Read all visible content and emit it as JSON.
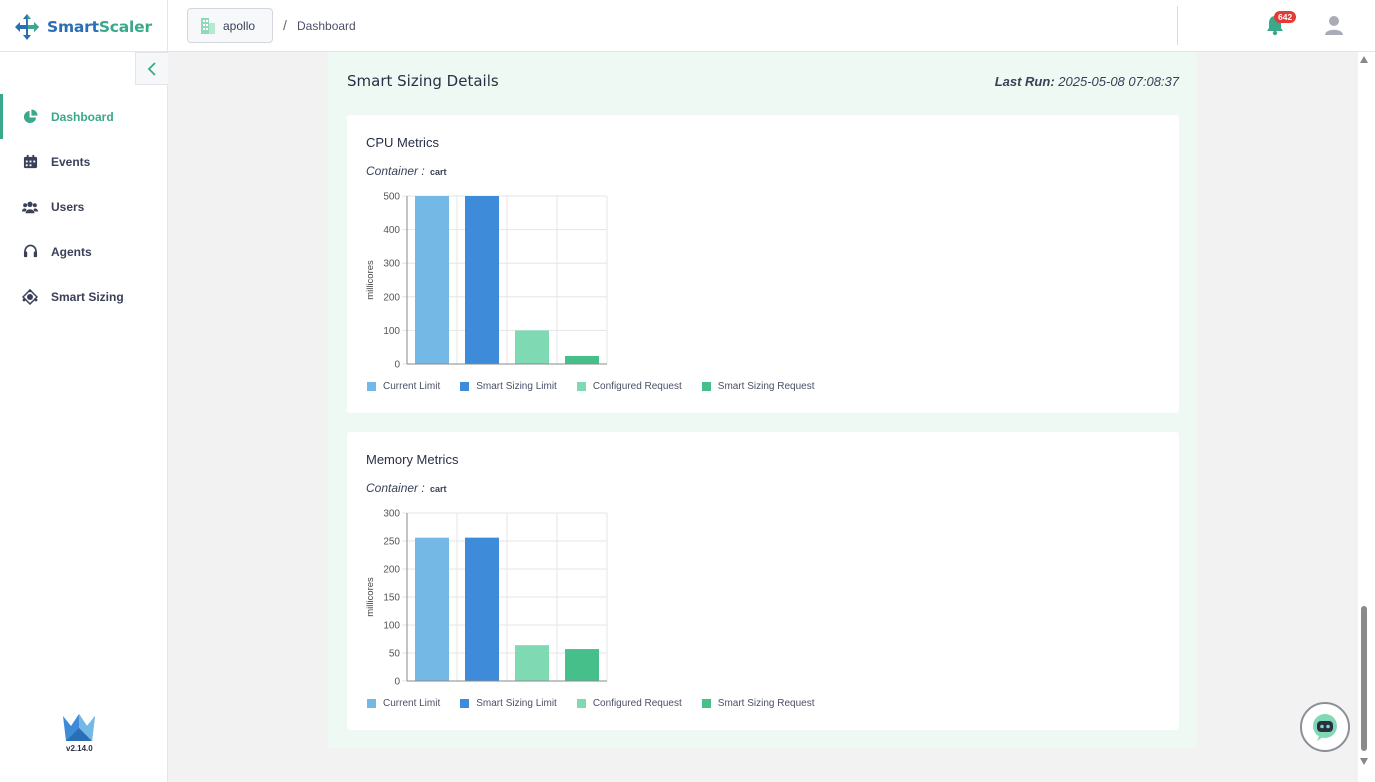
{
  "app": {
    "name_part1": "Smart",
    "name_part2": "Scaler",
    "version": "v2.14.0"
  },
  "header": {
    "workspace": "apollo",
    "separator": "/",
    "page": "Dashboard",
    "notification_count": "642"
  },
  "sidebar": {
    "items": [
      {
        "label": "Dashboard",
        "icon": "pie-chart-icon",
        "active": true
      },
      {
        "label": "Events",
        "icon": "calendar-icon",
        "active": false
      },
      {
        "label": "Users",
        "icon": "users-icon",
        "active": false
      },
      {
        "label": "Agents",
        "icon": "headset-icon",
        "active": false
      },
      {
        "label": "Smart Sizing",
        "icon": "smart-sizing-icon",
        "active": false
      }
    ]
  },
  "main": {
    "title": "Smart Sizing Details",
    "last_run_label": "Last Run:",
    "last_run_value": "2025-05-08 07:08:37"
  },
  "cards": [
    {
      "title": "CPU Metrics",
      "container_label": "Container :",
      "container_value": "cart"
    },
    {
      "title": "Memory Metrics",
      "container_label": "Container :",
      "container_value": "cart"
    }
  ],
  "colors": {
    "accent": "#3aa88a",
    "current_limit": "#74b9e6",
    "smart_sizing_limit": "#3d8bd9",
    "configured_request": "#7fdab4",
    "smart_sizing_request": "#47bf8a"
  },
  "chart_data": [
    {
      "type": "bar",
      "title": "CPU Metrics",
      "ylabel": "millicores",
      "ylim": [
        0,
        500
      ],
      "yticks": [
        0,
        100,
        200,
        300,
        400,
        500
      ],
      "grid": true,
      "legend_position": "bottom",
      "series": [
        {
          "name": "Current Limit",
          "values": [
            500
          ]
        },
        {
          "name": "Smart Sizing Limit",
          "values": [
            500
          ]
        },
        {
          "name": "Configured Request",
          "values": [
            100
          ]
        },
        {
          "name": "Smart Sizing Request",
          "values": [
            24
          ]
        }
      ]
    },
    {
      "type": "bar",
      "title": "Memory Metrics",
      "ylabel": "millicores",
      "ylim": [
        0,
        300
      ],
      "yticks": [
        0,
        50,
        100,
        150,
        200,
        250,
        300
      ],
      "grid": true,
      "legend_position": "bottom",
      "series": [
        {
          "name": "Current Limit",
          "values": [
            256
          ]
        },
        {
          "name": "Smart Sizing Limit",
          "values": [
            256
          ]
        },
        {
          "name": "Configured Request",
          "values": [
            64
          ]
        },
        {
          "name": "Smart Sizing Request",
          "values": [
            57
          ]
        }
      ]
    }
  ]
}
